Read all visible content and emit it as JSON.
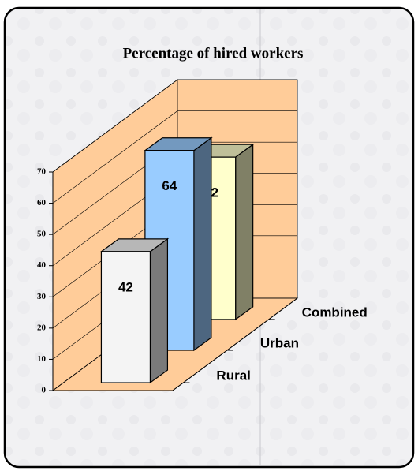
{
  "chart_data": {
    "type": "bar3d",
    "title": "Percentage of hired workers",
    "categories": [
      "Rural",
      "Urban",
      "Combined"
    ],
    "values": [
      42,
      64,
      52
    ],
    "colors": [
      "#f4f4f4",
      "#99ccff",
      "#ffffcc"
    ],
    "ylim": [
      0,
      70
    ],
    "yticks": [
      0,
      10,
      20,
      30,
      40,
      50,
      60,
      70
    ],
    "grid": true
  }
}
